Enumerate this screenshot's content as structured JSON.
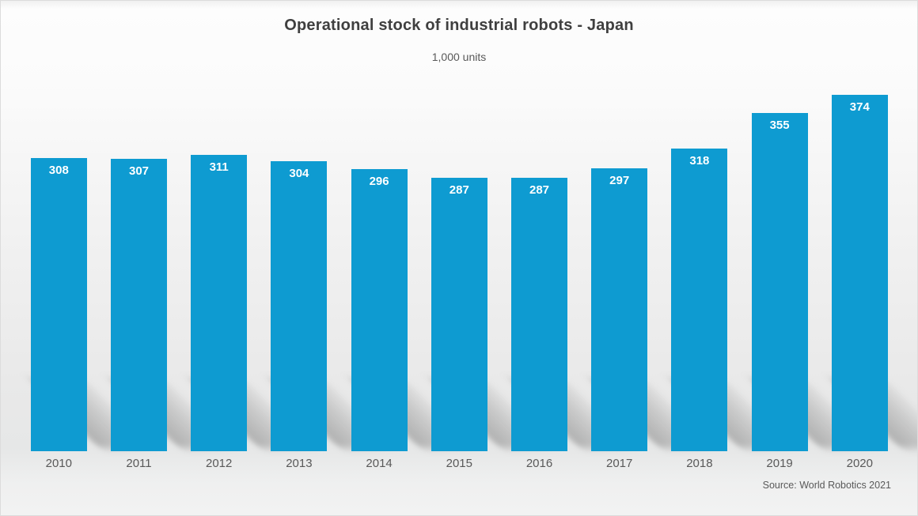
{
  "header": {
    "title": "Operational stock of industrial robots - Japan",
    "subtitle": "1,000 units"
  },
  "footer": {
    "source": "Source: World Robotics 2021"
  },
  "chart_data": {
    "type": "bar",
    "title": "Operational stock of industrial robots - Japan",
    "units_label": "1,000 units",
    "categories": [
      "2010",
      "2011",
      "2012",
      "2013",
      "2014",
      "2015",
      "2016",
      "2017",
      "2018",
      "2019",
      "2020"
    ],
    "values": [
      308,
      307,
      311,
      304,
      296,
      287,
      287,
      297,
      318,
      355,
      374
    ],
    "xlabel": "",
    "ylabel": "1,000 units",
    "ylim": [
      0,
      390
    ],
    "y_axis_visible": false,
    "gridlines": false,
    "legend": "none",
    "data_labels": "inside-end",
    "annotations": [
      "Source: World Robotics 2021"
    ]
  },
  "colors": {
    "bar": "#0e9bd1",
    "bar_label": "#ffffff",
    "title_text": "#3f3f3f",
    "secondary_text": "#595959",
    "shadow": "#8c8c8c",
    "background_top": "#fbfbfb",
    "background_bottom": "#e9e9e9"
  }
}
